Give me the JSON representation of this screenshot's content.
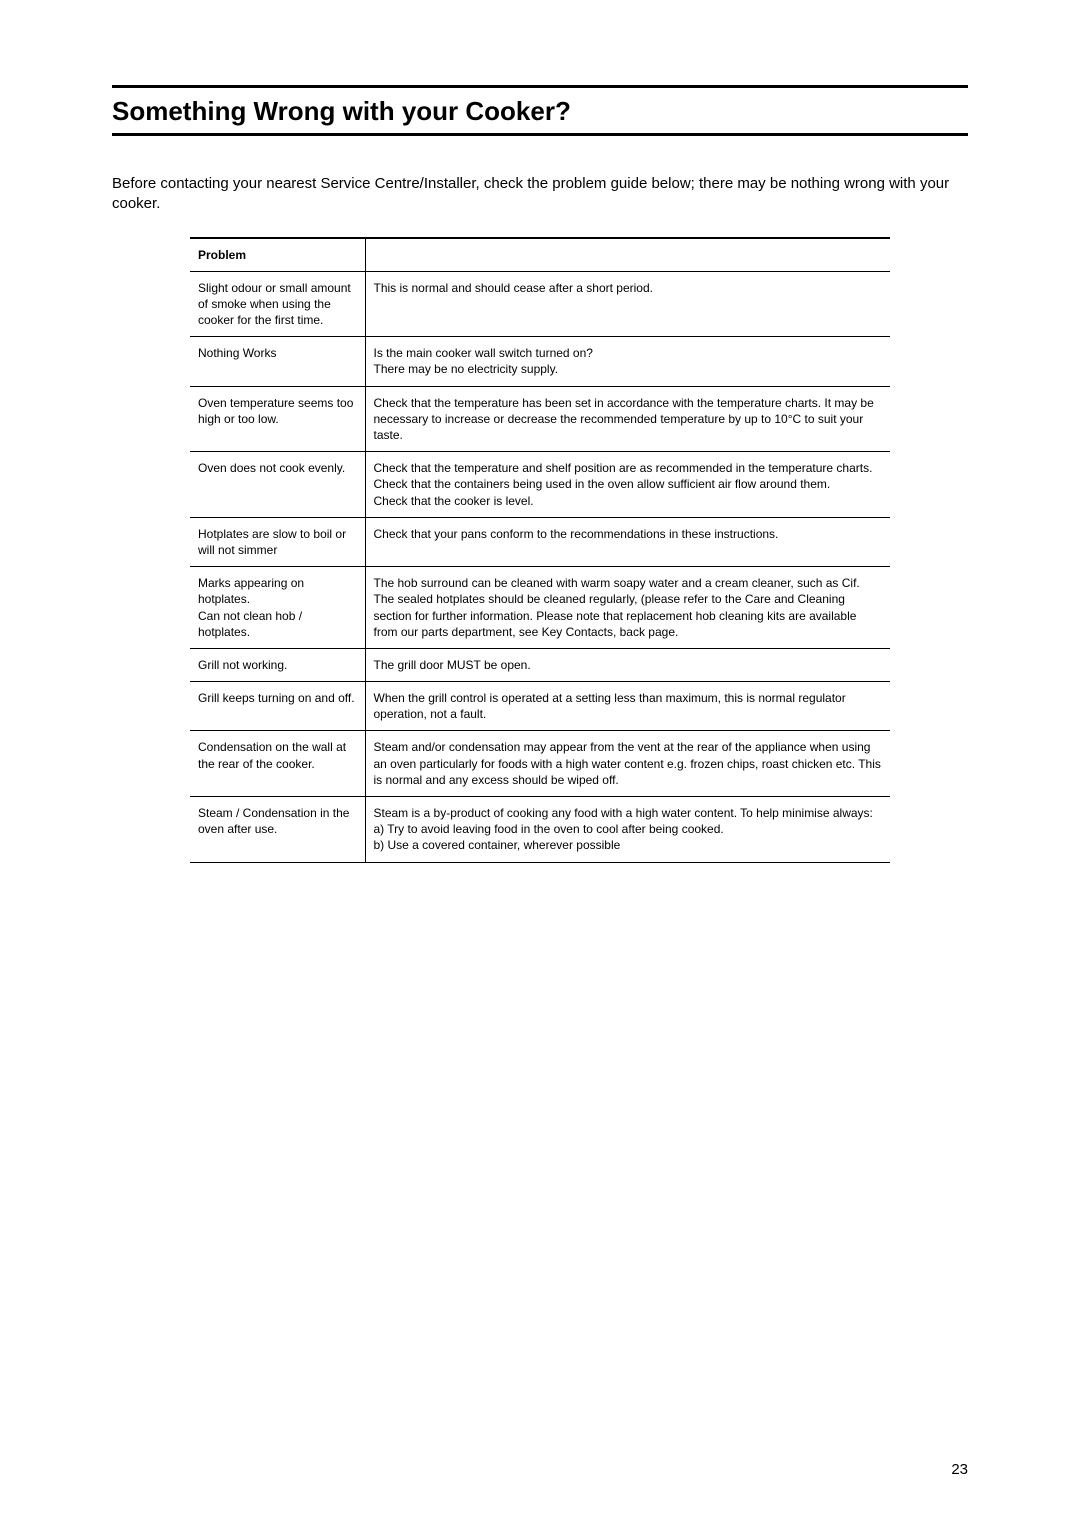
{
  "page_title": "Something Wrong with your Cooker?",
  "intro_text": "Before contacting your nearest Service Centre/Installer, check the problem guide below; there may be nothing wrong with your cooker.",
  "page_number": "23",
  "table": {
    "header_problem": "Problem",
    "header_solution": "",
    "col_problem_width": 175,
    "col_solution_width": 525,
    "border_color": "#000000",
    "font_size": 12,
    "rows": [
      {
        "problem": "Slight odour or small amount of smoke when using the cooker for the first time.",
        "solution": "This is normal and should cease after a short period."
      },
      {
        "problem": "Nothing Works",
        "solution": "Is the main cooker wall switch turned on?\nThere may be no electricity supply."
      },
      {
        "problem": "Oven temperature seems too high or too low.",
        "solution": "Check that the temperature has been set in accordance with the temperature charts. It may be necessary to increase or decrease the recommended temperature by up to 10°C to suit your taste."
      },
      {
        "problem": "Oven does not cook evenly.",
        "solution": "Check that the temperature and shelf position are as recommended in the temperature charts.\nCheck that the containers being used in the oven allow sufficient air flow around them.\nCheck that the cooker is level."
      },
      {
        "problem": "Hotplates are slow to boil or will not simmer",
        "solution": "Check that your pans conform to the recommendations in these instructions."
      },
      {
        "problem": "Marks appearing on hotplates.\nCan not clean hob / hotplates.",
        "solution": "The hob surround can be cleaned with warm soapy water and a cream cleaner, such as Cif. The sealed hotplates should be cleaned regularly, (please refer to the Care and Cleaning section for further information. Please note that replacement hob cleaning kits are available from our parts department, see Key Contacts, back page."
      },
      {
        "problem": "Grill not working.",
        "solution": "The grill door MUST be open."
      },
      {
        "problem": "Grill keeps turning on and off.",
        "solution": "When the grill control is operated at a setting less than maximum, this is normal regulator operation, not a fault."
      },
      {
        "problem": "Condensation on the wall at the rear of the cooker.",
        "solution": "Steam and/or condensation may appear from the vent at the rear of the appliance when using an oven particularly for foods with a high water content e.g. frozen chips, roast chicken etc. This is normal and any excess should be wiped off."
      },
      {
        "problem": "Steam / Condensation in the oven after use.",
        "solution": "Steam is a by-product of cooking any food with a high water content. To help minimise always:\na) Try to avoid leaving food in the oven to cool after being cooked.\nb) Use a covered container, wherever possible"
      }
    ]
  },
  "styling": {
    "background_color": "#ffffff",
    "text_color": "#000000",
    "title_fontsize": 26,
    "intro_fontsize": 15,
    "page_number_fontsize": 15,
    "rule_thickness": 3
  }
}
